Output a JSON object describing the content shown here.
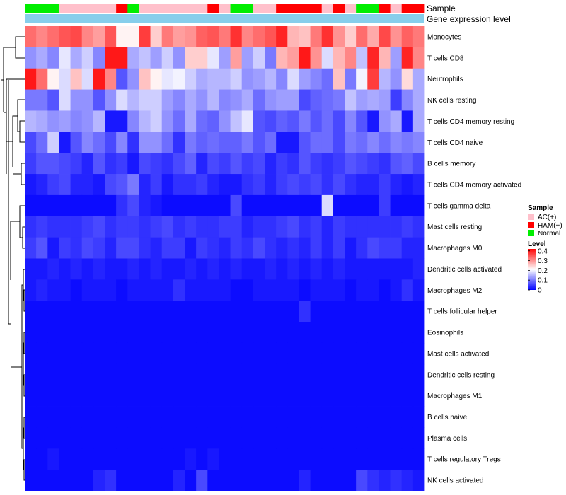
{
  "chart_data": {
    "type": "heatmap",
    "annotation_tracks": [
      "Sample",
      "Gene expression level"
    ],
    "rows": [
      "Monocytes",
      "T cells CD8",
      "Neutrophils",
      "NK cells resting",
      "T cells CD4 memory resting",
      "T cells CD4 naive",
      "B cells memory",
      "T cells CD4 memory activated",
      "T cells gamma delta",
      "Mast cells resting",
      "Macrophages M0",
      "Dendritic cells activated",
      "Macrophages M2",
      "T cells follicular helper",
      "Eosinophils",
      "Mast cells activated",
      "Dendritic cells resting",
      "Macrophages M1",
      "B cells naive",
      "Plasma cells",
      "T cells regulatory  Tregs",
      "NK cells activated"
    ],
    "samples": [
      "N",
      "N",
      "N",
      "A",
      "A",
      "A",
      "A",
      "A",
      "H",
      "N",
      "A",
      "A",
      "A",
      "A",
      "A",
      "A",
      "H",
      "A",
      "N",
      "N",
      "A",
      "A",
      "H",
      "H",
      "H",
      "H",
      "A",
      "H",
      "A",
      "N",
      "N",
      "H",
      "A",
      "H",
      "H"
    ],
    "sample_colors": {
      "A": "#FFC0CB",
      "H": "#FF0000",
      "N": "#00EE00"
    },
    "legend_sample": {
      "title": "Sample",
      "items": [
        {
          "label": "AC(+)",
          "color": "#FFC0CB"
        },
        {
          "label": "HAM(+)",
          "color": "#FF0000"
        },
        {
          "label": "Normal",
          "color": "#00EE00"
        }
      ]
    },
    "legend_level": {
      "title": "Level",
      "ticks": [
        "0.4",
        "0.3",
        "0.2",
        "0.1",
        "0"
      ],
      "tick_values": [
        0.4,
        0.3,
        0.2,
        0.1,
        0.0
      ],
      "range": [
        0,
        0.42
      ],
      "colors": [
        "#0000FF",
        "#FFFFFF",
        "#FF0000"
      ]
    },
    "values": [
      [
        0.33,
        0.31,
        0.33,
        0.35,
        0.36,
        0.31,
        0.29,
        0.35,
        0.22,
        0.22,
        0.37,
        0.25,
        0.32,
        0.29,
        0.3,
        0.34,
        0.35,
        0.32,
        0.38,
        0.31,
        0.33,
        0.35,
        0.39,
        0.27,
        0.26,
        0.32,
        0.38,
        0.3,
        0.25,
        0.33,
        0.28,
        0.36,
        0.3,
        0.34,
        0.32
      ],
      [
        0.12,
        0.14,
        0.11,
        0.19,
        0.14,
        0.17,
        0.11,
        0.4,
        0.4,
        0.14,
        0.16,
        0.13,
        0.17,
        0.12,
        0.25,
        0.25,
        0.19,
        0.13,
        0.29,
        0.13,
        0.17,
        0.1,
        0.27,
        0.29,
        0.4,
        0.3,
        0.18,
        0.27,
        0.31,
        0.16,
        0.39,
        0.27,
        0.13,
        0.39,
        0.31
      ],
      [
        0.4,
        0.33,
        0.22,
        0.18,
        0.26,
        0.18,
        0.4,
        0.31,
        0.07,
        0.12,
        0.26,
        0.22,
        0.19,
        0.2,
        0.17,
        0.14,
        0.15,
        0.15,
        0.17,
        0.12,
        0.13,
        0.15,
        0.11,
        0.18,
        0.13,
        0.11,
        0.09,
        0.26,
        0.1,
        0.2,
        0.37,
        0.15,
        0.12,
        0.24,
        0.14
      ],
      [
        0.1,
        0.1,
        0.07,
        0.18,
        0.12,
        0.12,
        0.07,
        0.12,
        0.18,
        0.15,
        0.17,
        0.17,
        0.13,
        0.11,
        0.14,
        0.12,
        0.15,
        0.11,
        0.12,
        0.14,
        0.09,
        0.12,
        0.13,
        0.13,
        0.06,
        0.08,
        0.09,
        0.1,
        0.16,
        0.13,
        0.14,
        0.13,
        0.05,
        0.11,
        0.14
      ],
      [
        0.15,
        0.14,
        0.12,
        0.13,
        0.11,
        0.12,
        0.15,
        0.02,
        0.02,
        0.11,
        0.15,
        0.17,
        0.12,
        0.09,
        0.14,
        0.09,
        0.08,
        0.12,
        0.16,
        0.19,
        0.07,
        0.06,
        0.08,
        0.07,
        0.1,
        0.07,
        0.09,
        0.06,
        0.11,
        0.07,
        0.02,
        0.12,
        0.14,
        0.02,
        0.14
      ],
      [
        0.06,
        0.09,
        0.17,
        0.02,
        0.07,
        0.11,
        0.09,
        0.06,
        0.11,
        0.04,
        0.12,
        0.12,
        0.09,
        0.04,
        0.1,
        0.08,
        0.09,
        0.08,
        0.08,
        0.1,
        0.07,
        0.09,
        0.02,
        0.02,
        0.07,
        0.09,
        0.09,
        0.06,
        0.1,
        0.09,
        0.11,
        0.09,
        0.11,
        0.1,
        0.11
      ],
      [
        0.05,
        0.07,
        0.07,
        0.06,
        0.05,
        0.03,
        0.07,
        0.04,
        0.05,
        0.02,
        0.06,
        0.05,
        0.04,
        0.06,
        0.08,
        0.03,
        0.06,
        0.05,
        0.07,
        0.05,
        0.06,
        0.03,
        0.05,
        0.04,
        0.07,
        0.05,
        0.04,
        0.05,
        0.07,
        0.06,
        0.05,
        0.04,
        0.07,
        0.08,
        0.06
      ],
      [
        0.02,
        0.03,
        0.05,
        0.06,
        0.03,
        0.03,
        0.02,
        0.06,
        0.07,
        0.1,
        0.03,
        0.05,
        0.02,
        0.04,
        0.04,
        0.05,
        0.03,
        0.02,
        0.02,
        0.04,
        0.05,
        0.03,
        0.05,
        0.06,
        0.05,
        0.06,
        0.04,
        0.06,
        0.04,
        0.03,
        0.03,
        0.05,
        0.03,
        0.02,
        0.03
      ],
      [
        0.01,
        0.01,
        0.01,
        0.01,
        0.01,
        0.01,
        0.01,
        0.01,
        0.04,
        0.06,
        0.03,
        0.02,
        0.01,
        0.01,
        0.01,
        0.01,
        0.01,
        0.01,
        0.06,
        0.01,
        0.01,
        0.01,
        0.01,
        0.01,
        0.01,
        0.01,
        0.18,
        0.01,
        0.01,
        0.01,
        0.01,
        0.05,
        0.01,
        0.01,
        0.01
      ],
      [
        0.04,
        0.05,
        0.04,
        0.04,
        0.04,
        0.05,
        0.06,
        0.04,
        0.05,
        0.05,
        0.04,
        0.05,
        0.06,
        0.04,
        0.05,
        0.04,
        0.04,
        0.05,
        0.05,
        0.03,
        0.04,
        0.04,
        0.05,
        0.06,
        0.04,
        0.05,
        0.03,
        0.05,
        0.04,
        0.04,
        0.04,
        0.04,
        0.04,
        0.05,
        0.04
      ],
      [
        0.05,
        0.07,
        0.02,
        0.05,
        0.04,
        0.06,
        0.05,
        0.03,
        0.06,
        0.06,
        0.04,
        0.03,
        0.05,
        0.05,
        0.02,
        0.05,
        0.04,
        0.03,
        0.05,
        0.04,
        0.06,
        0.04,
        0.03,
        0.04,
        0.03,
        0.05,
        0.03,
        0.05,
        0.02,
        0.04,
        0.06,
        0.05,
        0.05,
        0.03,
        0.03
      ],
      [
        0.02,
        0.02,
        0.03,
        0.02,
        0.03,
        0.02,
        0.03,
        0.02,
        0.02,
        0.03,
        0.02,
        0.03,
        0.02,
        0.02,
        0.03,
        0.02,
        0.03,
        0.02,
        0.03,
        0.02,
        0.02,
        0.03,
        0.02,
        0.03,
        0.02,
        0.03,
        0.02,
        0.03,
        0.02,
        0.02,
        0.02,
        0.02,
        0.02,
        0.02,
        0.03
      ],
      [
        0.02,
        0.03,
        0.02,
        0.02,
        0.01,
        0.02,
        0.02,
        0.02,
        0.01,
        0.02,
        0.02,
        0.02,
        0.02,
        0.04,
        0.02,
        0.02,
        0.02,
        0.02,
        0.01,
        0.01,
        0.02,
        0.02,
        0.02,
        0.02,
        0.01,
        0.02,
        0.02,
        0.02,
        0.01,
        0.02,
        0.02,
        0.01,
        0.02,
        0.04,
        0.02
      ],
      [
        0.01,
        0.01,
        0.01,
        0.01,
        0.01,
        0.01,
        0.01,
        0.01,
        0.01,
        0.01,
        0.01,
        0.01,
        0.01,
        0.01,
        0.01,
        0.01,
        0.01,
        0.01,
        0.01,
        0.01,
        0.01,
        0.01,
        0.01,
        0.01,
        0.04,
        0.01,
        0.01,
        0.01,
        0.01,
        0.01,
        0.01,
        0.01,
        0.01,
        0.01,
        0.01
      ],
      [
        0.01,
        0.01,
        0.01,
        0.01,
        0.01,
        0.01,
        0.01,
        0.01,
        0.01,
        0.01,
        0.01,
        0.01,
        0.01,
        0.01,
        0.01,
        0.01,
        0.01,
        0.01,
        0.01,
        0.01,
        0.01,
        0.01,
        0.01,
        0.01,
        0.01,
        0.01,
        0.01,
        0.01,
        0.01,
        0.01,
        0.01,
        0.01,
        0.01,
        0.01,
        0.01
      ],
      [
        0.01,
        0.01,
        0.01,
        0.01,
        0.01,
        0.01,
        0.01,
        0.01,
        0.01,
        0.01,
        0.01,
        0.01,
        0.01,
        0.01,
        0.01,
        0.01,
        0.01,
        0.01,
        0.01,
        0.01,
        0.01,
        0.01,
        0.01,
        0.01,
        0.01,
        0.01,
        0.01,
        0.01,
        0.01,
        0.01,
        0.01,
        0.01,
        0.01,
        0.01,
        0.01
      ],
      [
        0.01,
        0.01,
        0.01,
        0.01,
        0.01,
        0.01,
        0.01,
        0.01,
        0.01,
        0.01,
        0.01,
        0.01,
        0.01,
        0.01,
        0.01,
        0.01,
        0.01,
        0.01,
        0.01,
        0.01,
        0.01,
        0.01,
        0.01,
        0.01,
        0.01,
        0.01,
        0.01,
        0.01,
        0.01,
        0.01,
        0.01,
        0.01,
        0.01,
        0.01,
        0.01
      ],
      [
        0.01,
        0.01,
        0.01,
        0.01,
        0.01,
        0.01,
        0.01,
        0.01,
        0.01,
        0.01,
        0.01,
        0.01,
        0.01,
        0.01,
        0.01,
        0.01,
        0.01,
        0.01,
        0.01,
        0.01,
        0.01,
        0.01,
        0.01,
        0.01,
        0.01,
        0.01,
        0.01,
        0.01,
        0.01,
        0.01,
        0.01,
        0.01,
        0.01,
        0.01,
        0.01
      ],
      [
        0.01,
        0.01,
        0.01,
        0.01,
        0.01,
        0.01,
        0.01,
        0.01,
        0.01,
        0.01,
        0.01,
        0.01,
        0.01,
        0.01,
        0.01,
        0.01,
        0.01,
        0.01,
        0.01,
        0.01,
        0.01,
        0.01,
        0.01,
        0.01,
        0.01,
        0.01,
        0.01,
        0.01,
        0.01,
        0.01,
        0.01,
        0.01,
        0.01,
        0.01,
        0.01
      ],
      [
        0.01,
        0.01,
        0.01,
        0.01,
        0.01,
        0.01,
        0.01,
        0.01,
        0.01,
        0.01,
        0.01,
        0.01,
        0.01,
        0.01,
        0.01,
        0.01,
        0.01,
        0.01,
        0.01,
        0.01,
        0.01,
        0.01,
        0.01,
        0.01,
        0.01,
        0.01,
        0.01,
        0.01,
        0.01,
        0.01,
        0.01,
        0.01,
        0.01,
        0.01,
        0.01
      ],
      [
        0.01,
        0.01,
        0.02,
        0.01,
        0.01,
        0.01,
        0.01,
        0.01,
        0.01,
        0.01,
        0.01,
        0.01,
        0.01,
        0.01,
        0.02,
        0.01,
        0.02,
        0.01,
        0.01,
        0.01,
        0.01,
        0.01,
        0.01,
        0.01,
        0.01,
        0.01,
        0.01,
        0.01,
        0.01,
        0.01,
        0.01,
        0.01,
        0.01,
        0.01,
        0.01
      ],
      [
        0.01,
        0.01,
        0.01,
        0.01,
        0.01,
        0.01,
        0.03,
        0.04,
        0.01,
        0.01,
        0.01,
        0.01,
        0.01,
        0.03,
        0.01,
        0.06,
        0.01,
        0.01,
        0.01,
        0.01,
        0.01,
        0.01,
        0.01,
        0.01,
        0.03,
        0.01,
        0.01,
        0.01,
        0.01,
        0.06,
        0.04,
        0.03,
        0.04,
        0.03,
        0.02
      ]
    ]
  }
}
